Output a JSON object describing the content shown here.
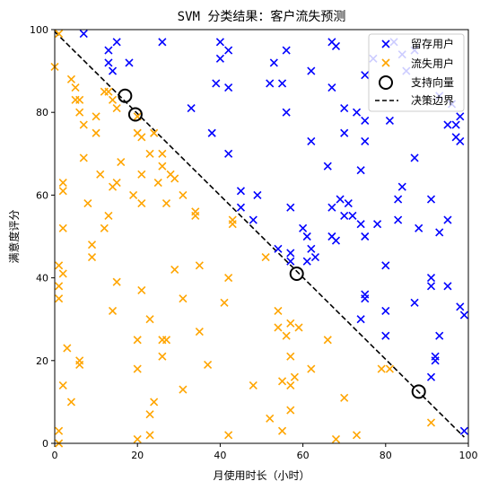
{
  "chart_data": {
    "type": "scatter",
    "title": "SVM 分类结果：客户流失预测",
    "xlabel": "月使用时长（小时）",
    "ylabel": "满意度评分",
    "xlim": [
      0,
      100
    ],
    "ylim": [
      0,
      100
    ],
    "xticks": [
      0,
      20,
      40,
      60,
      80,
      100
    ],
    "yticks": [
      0,
      20,
      40,
      60,
      80,
      100
    ],
    "grid": false,
    "legend_position": "top-right",
    "colors": {
      "retained": "#0000ff",
      "churned": "#ffa500",
      "support": "#000000",
      "boundary": "#000000"
    },
    "series": [
      {
        "name": "留存用户",
        "marker": "x",
        "color": "#0000ff",
        "points": [
          [
            7,
            99
          ],
          [
            15,
            97
          ],
          [
            13,
            95
          ],
          [
            18,
            92
          ],
          [
            13,
            92
          ],
          [
            14,
            90
          ],
          [
            26,
            97
          ],
          [
            40,
            97
          ],
          [
            42,
            95
          ],
          [
            40,
            93
          ],
          [
            53,
            92
          ],
          [
            56,
            95
          ],
          [
            55,
            87
          ],
          [
            52,
            87
          ],
          [
            56,
            80
          ],
          [
            62,
            90
          ],
          [
            67,
            97
          ],
          [
            68,
            96
          ],
          [
            67,
            86
          ],
          [
            70,
            81
          ],
          [
            73,
            80
          ],
          [
            75,
            89
          ],
          [
            77,
            93
          ],
          [
            82,
            97
          ],
          [
            87,
            95
          ],
          [
            85,
            90
          ],
          [
            93,
            84
          ],
          [
            96,
            82
          ],
          [
            97,
            77
          ],
          [
            98,
            79
          ],
          [
            97,
            74
          ],
          [
            98,
            73
          ],
          [
            95,
            77
          ],
          [
            81,
            78
          ],
          [
            75,
            78
          ],
          [
            70,
            75
          ],
          [
            62,
            73
          ],
          [
            66,
            67
          ],
          [
            74,
            66
          ],
          [
            75,
            73
          ],
          [
            87,
            69
          ],
          [
            33,
            81
          ],
          [
            38,
            75
          ],
          [
            42,
            86
          ],
          [
            39,
            87
          ],
          [
            42,
            70
          ],
          [
            45,
            61
          ],
          [
            49,
            60
          ],
          [
            45,
            57
          ],
          [
            48,
            54
          ],
          [
            57,
            57
          ],
          [
            60,
            52
          ],
          [
            61,
            50
          ],
          [
            62,
            47
          ],
          [
            63,
            45
          ],
          [
            61,
            44
          ],
          [
            57,
            46
          ],
          [
            57,
            44
          ],
          [
            54,
            47
          ],
          [
            67,
            57
          ],
          [
            69,
            59
          ],
          [
            71,
            58
          ],
          [
            70,
            55
          ],
          [
            72,
            55
          ],
          [
            74,
            53
          ],
          [
            75,
            50
          ],
          [
            67,
            50
          ],
          [
            68,
            49
          ],
          [
            78,
            53
          ],
          [
            83,
            59
          ],
          [
            84,
            62
          ],
          [
            88,
            52
          ],
          [
            83,
            54
          ],
          [
            91,
            59
          ],
          [
            93,
            51
          ],
          [
            95,
            54
          ],
          [
            80,
            43
          ],
          [
            87,
            34
          ],
          [
            91,
            40
          ],
          [
            91,
            38
          ],
          [
            95,
            38
          ],
          [
            74,
            30
          ],
          [
            75,
            36
          ],
          [
            75,
            35
          ],
          [
            80,
            32
          ],
          [
            80,
            26
          ],
          [
            93,
            26
          ],
          [
            92,
            21
          ],
          [
            92,
            20
          ],
          [
            91,
            16
          ],
          [
            98,
            33
          ],
          [
            99,
            31
          ],
          [
            99,
            3
          ],
          [
            84,
            94
          ]
        ]
      },
      {
        "name": "流失用户",
        "marker": "x",
        "color": "#ffa500",
        "points": [
          [
            0,
            91
          ],
          [
            1,
            99
          ],
          [
            4,
            88
          ],
          [
            5,
            86
          ],
          [
            5,
            83
          ],
          [
            6,
            83
          ],
          [
            6,
            80
          ],
          [
            7,
            77
          ],
          [
            10,
            79
          ],
          [
            10,
            75
          ],
          [
            13,
            85
          ],
          [
            12,
            85
          ],
          [
            15,
            81
          ],
          [
            14,
            83
          ],
          [
            16,
            68
          ],
          [
            20,
            79
          ],
          [
            20,
            75
          ],
          [
            21,
            74
          ],
          [
            24,
            75
          ],
          [
            26,
            70
          ],
          [
            23,
            70
          ],
          [
            26,
            67
          ],
          [
            21,
            65
          ],
          [
            25,
            63
          ],
          [
            28,
            65
          ],
          [
            29,
            64
          ],
          [
            27,
            58
          ],
          [
            31,
            60
          ],
          [
            34,
            56
          ],
          [
            34,
            55
          ],
          [
            19,
            60
          ],
          [
            21,
            58
          ],
          [
            15,
            63
          ],
          [
            13,
            55
          ],
          [
            12,
            52
          ],
          [
            14,
            62
          ],
          [
            11,
            65
          ],
          [
            8,
            58
          ],
          [
            7,
            69
          ],
          [
            2,
            63
          ],
          [
            2,
            61
          ],
          [
            2,
            52
          ],
          [
            9,
            48
          ],
          [
            9,
            45
          ],
          [
            1,
            43
          ],
          [
            2,
            41
          ],
          [
            1,
            38
          ],
          [
            1,
            35
          ],
          [
            3,
            23
          ],
          [
            6,
            20
          ],
          [
            6,
            19
          ],
          [
            2,
            14
          ],
          [
            4,
            10
          ],
          [
            1,
            3
          ],
          [
            1,
            0
          ],
          [
            15,
            39
          ],
          [
            14,
            32
          ],
          [
            21,
            37
          ],
          [
            20,
            25
          ],
          [
            20,
            18
          ],
          [
            23,
            30
          ],
          [
            26,
            25
          ],
          [
            27,
            25
          ],
          [
            26,
            21
          ],
          [
            24,
            10
          ],
          [
            23,
            7
          ],
          [
            23,
            2
          ],
          [
            20,
            1
          ],
          [
            29,
            42
          ],
          [
            31,
            35
          ],
          [
            31,
            13
          ],
          [
            35,
            43
          ],
          [
            35,
            27
          ],
          [
            37,
            19
          ],
          [
            41,
            34
          ],
          [
            42,
            40
          ],
          [
            42,
            2
          ],
          [
            43,
            54
          ],
          [
            43,
            53
          ],
          [
            48,
            14
          ],
          [
            51,
            45
          ],
          [
            52,
            6
          ],
          [
            54,
            32
          ],
          [
            54,
            28
          ],
          [
            55,
            15
          ],
          [
            55,
            3
          ],
          [
            57,
            29
          ],
          [
            56,
            26
          ],
          [
            57,
            21
          ],
          [
            57,
            14
          ],
          [
            57,
            8
          ],
          [
            58,
            16
          ],
          [
            59,
            28
          ],
          [
            62,
            18
          ],
          [
            66,
            25
          ],
          [
            68,
            1
          ],
          [
            70,
            11
          ],
          [
            73,
            2
          ],
          [
            79,
            18
          ],
          [
            81,
            18
          ],
          [
            91,
            5
          ]
        ]
      },
      {
        "name": "支持向量",
        "marker": "circle",
        "color": "#000000",
        "points": [
          [
            17,
            84
          ],
          [
            19.5,
            79.5
          ],
          [
            58.5,
            41
          ],
          [
            88,
            12.5
          ]
        ]
      }
    ],
    "lines": [
      {
        "name": "决策边界",
        "style": "dashed",
        "color": "#000000",
        "points": [
          [
            0,
            99.5
          ],
          [
            99,
            1.5
          ]
        ]
      }
    ]
  }
}
